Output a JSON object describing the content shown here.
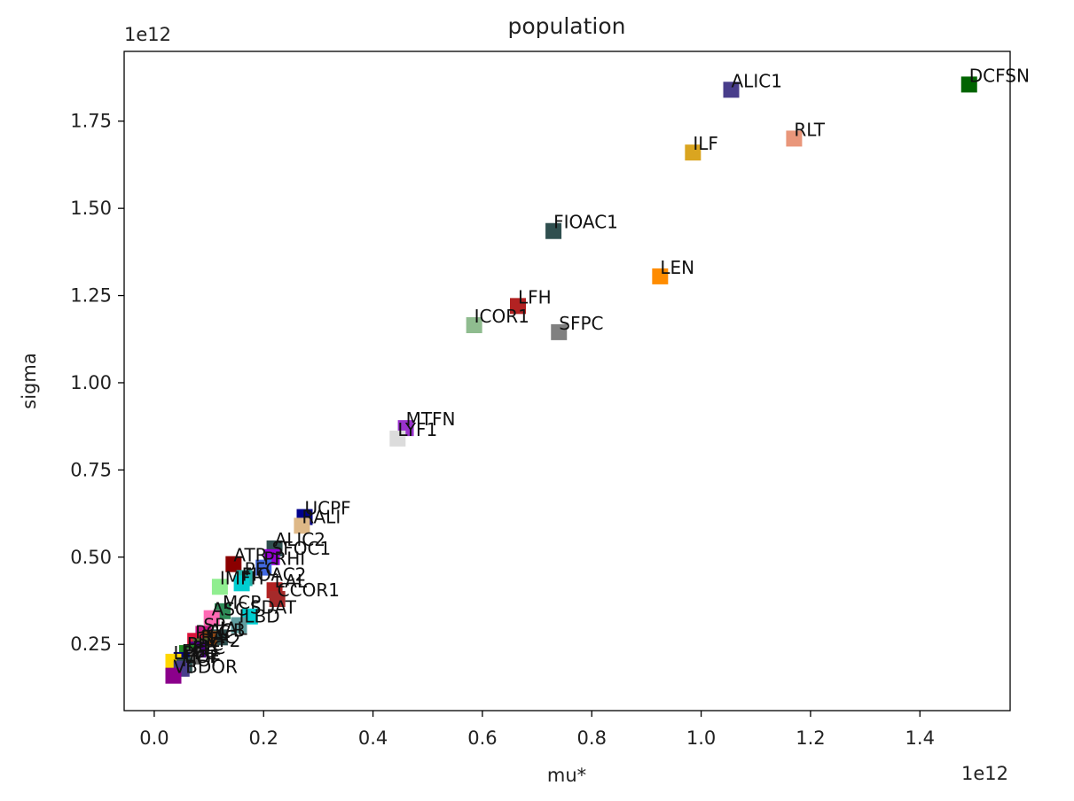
{
  "chart_data": {
    "type": "scatter",
    "title": "population",
    "xlabel": "mu*",
    "ylabel": "sigma",
    "x_offset_text": "1e12",
    "y_offset_text": "1e12",
    "xlim": [
      -0.055,
      1.565
    ],
    "ylim": [
      0.06,
      1.95
    ],
    "xticks": [
      0.0,
      0.2,
      0.4,
      0.6,
      0.8,
      1.0,
      1.2,
      1.4
    ],
    "xtick_labels": [
      "0.0",
      "0.2",
      "0.4",
      "0.6",
      "0.8",
      "1.0",
      "1.2",
      "1.4"
    ],
    "yticks": [
      0.25,
      0.5,
      0.75,
      1.0,
      1.25,
      1.5,
      1.75
    ],
    "ytick_labels": [
      "0.25",
      "0.50",
      "0.75",
      "1.00",
      "1.25",
      "1.50",
      "1.75"
    ],
    "grid": false,
    "marker": "square",
    "points": [
      {
        "label": "DCFSN",
        "x": 1.49,
        "y": 1.855,
        "color": "#006400"
      },
      {
        "label": "ALIC1",
        "x": 1.055,
        "y": 1.84,
        "color": "#483d8b"
      },
      {
        "label": "RLT",
        "x": 1.17,
        "y": 1.7,
        "color": "#e9967a"
      },
      {
        "label": "ILF",
        "x": 0.985,
        "y": 1.66,
        "color": "#daa520"
      },
      {
        "label": "FIOAC1",
        "x": 0.73,
        "y": 1.435,
        "color": "#2f4f4f"
      },
      {
        "label": "LEN",
        "x": 0.925,
        "y": 1.305,
        "color": "#ff8c00"
      },
      {
        "label": "LFH",
        "x": 0.665,
        "y": 1.22,
        "color": "#b22222"
      },
      {
        "label": "ICOR1",
        "x": 0.585,
        "y": 1.165,
        "color": "#8fbc8f"
      },
      {
        "label": "SFPC",
        "x": 0.74,
        "y": 1.145,
        "color": "#808080"
      },
      {
        "label": "MTFN",
        "x": 0.46,
        "y": 0.87,
        "color": "#9932cc"
      },
      {
        "label": "LYF1",
        "x": 0.445,
        "y": 0.84,
        "color": "#dcdcdc"
      },
      {
        "label": "UCPF",
        "x": 0.275,
        "y": 0.615,
        "color": "#00008b"
      },
      {
        "label": "RALI",
        "x": 0.27,
        "y": 0.59,
        "color": "#deb887"
      },
      {
        "label": "ALIC2",
        "x": 0.22,
        "y": 0.525,
        "color": "#2f4f4f"
      },
      {
        "label": "SFOC1",
        "x": 0.215,
        "y": 0.5,
        "color": "#9400d3"
      },
      {
        "label": "ATR",
        "x": 0.145,
        "y": 0.48,
        "color": "#8b0000"
      },
      {
        "label": "PRHI",
        "x": 0.2,
        "y": 0.47,
        "color": "#4169e1"
      },
      {
        "label": "PFC",
        "x": 0.165,
        "y": 0.44,
        "color": "#20b2aa"
      },
      {
        "label": "FIOAC2",
        "x": 0.16,
        "y": 0.425,
        "color": "#00ced1"
      },
      {
        "label": "IMFH",
        "x": 0.12,
        "y": 0.415,
        "color": "#90ee90"
      },
      {
        "label": "LAL",
        "x": 0.22,
        "y": 0.405,
        "color": "#b22222"
      },
      {
        "label": "CCOR1",
        "x": 0.225,
        "y": 0.38,
        "color": "#a52a2a"
      },
      {
        "label": "MCP",
        "x": 0.125,
        "y": 0.345,
        "color": "#2e8b57"
      },
      {
        "label": "SDAT",
        "x": 0.175,
        "y": 0.33,
        "color": "#00ced1"
      },
      {
        "label": "ASC",
        "x": 0.105,
        "y": 0.325,
        "color": "#ff69b4"
      },
      {
        "label": "ILBD",
        "x": 0.155,
        "y": 0.305,
        "color": "#5f9ea0"
      },
      {
        "label": "SP",
        "x": 0.09,
        "y": 0.28,
        "color": "#c71585"
      },
      {
        "label": "IAL",
        "x": 0.12,
        "y": 0.27,
        "color": "#2f4f4f"
      },
      {
        "label": "ACB",
        "x": 0.1,
        "y": 0.265,
        "color": "#8b4513"
      },
      {
        "label": "PCC",
        "x": 0.075,
        "y": 0.26,
        "color": "#dc143c"
      },
      {
        "label": "RAC",
        "x": 0.085,
        "y": 0.245,
        "color": "#556b2f"
      },
      {
        "label": "SLF2",
        "x": 0.08,
        "y": 0.235,
        "color": "#4b0082"
      },
      {
        "label": "PHC",
        "x": 0.06,
        "y": 0.225,
        "color": "#228b22"
      },
      {
        "label": "PLC",
        "x": 0.07,
        "y": 0.215,
        "color": "#696969"
      },
      {
        "label": "FGB",
        "x": 0.05,
        "y": 0.205,
        "color": "#000080"
      },
      {
        "label": "LPFC",
        "x": 0.035,
        "y": 0.2,
        "color": "#ffd700"
      },
      {
        "label": "EOF",
        "x": 0.055,
        "y": 0.19,
        "color": "#2f4f4f"
      },
      {
        "label": "MOF",
        "x": 0.05,
        "y": 0.18,
        "color": "#483d8b"
      },
      {
        "label": "VBDOR",
        "x": 0.035,
        "y": 0.16,
        "color": "#8b008b"
      }
    ]
  }
}
